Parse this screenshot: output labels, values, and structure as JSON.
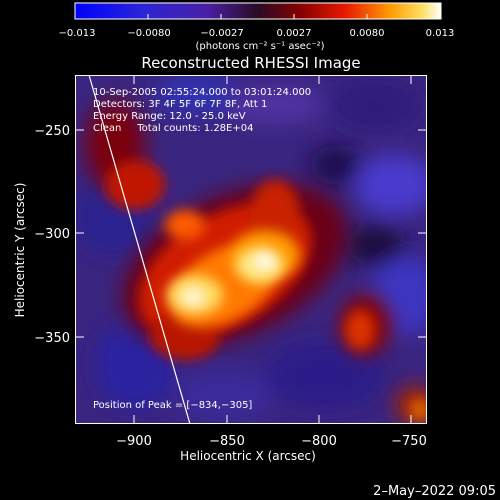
{
  "colorbar": {
    "tick_labels": [
      "−0.013",
      "−0.0080",
      "−0.0027",
      "0.0027",
      "0.0080",
      "0.013"
    ],
    "units": "(photons cm⁻² s⁻¹ asec⁻²)"
  },
  "title": "Reconstructed RHESSI Image",
  "info": {
    "time": "10-Sep-2005 02:55:24.000 to 03:01:24.000",
    "detectors": "Detectors: 3F 4F 5F 6F 7F 8F, Att 1",
    "energy": "Energy Range: 12.0 - 25.0 keV",
    "clean": "Clean     Total counts: 1.28E+04"
  },
  "peak": "Position of Peak = [−834,−305]",
  "axes": {
    "xlabel": "Heliocentric X (arcsec)",
    "ylabel": "Heliocentric Y (arcsec)",
    "x_ticks": [
      "−900",
      "−850",
      "−800",
      "−750"
    ],
    "y_ticks": [
      "−250",
      "−300",
      "−350"
    ]
  },
  "footer_date": "2–May–2022 09:05",
  "colors": {
    "background": "#000000",
    "limb_line": "#ffffff"
  }
}
